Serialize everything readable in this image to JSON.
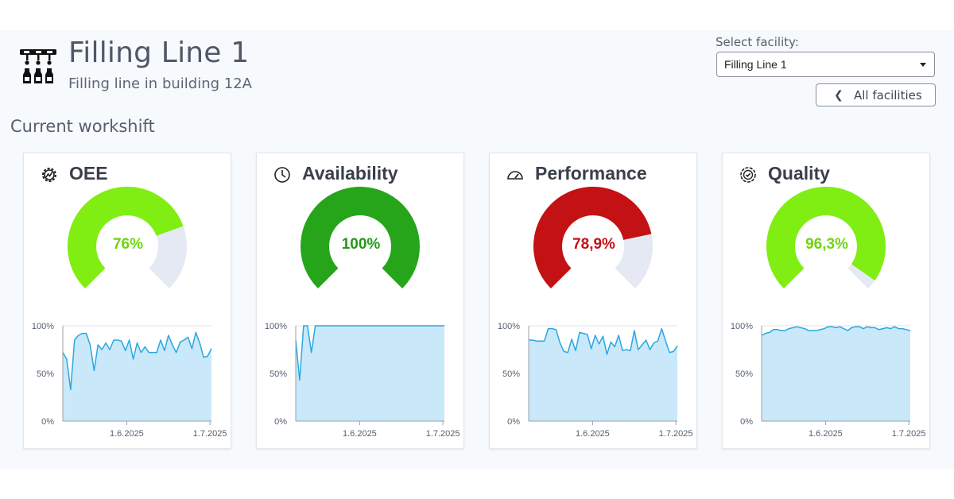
{
  "header": {
    "icon": "filling-line-icon",
    "title": "Filling Line 1",
    "subtitle": "Filling line in building 12A"
  },
  "section_title": "Current workshift",
  "facility_select": {
    "label": "Select facility:",
    "value": "Filling Line 1"
  },
  "back_button": {
    "label": "All facilities",
    "icon": "chevron-left-icon"
  },
  "colors": {
    "gauge_track": "#e5e9f4",
    "chart_fill": "#c9e8fa",
    "chart_line": "#2aa8e0",
    "light_green": "#80ee12",
    "dark_green": "#26a51b",
    "red": "#c41114"
  },
  "cards": [
    {
      "title": "OEE",
      "icon": "oee-gear-icon",
      "value_text": "76%",
      "value": 76,
      "color": "#80ee12",
      "text_color": "#6fd410"
    },
    {
      "title": "Availability",
      "icon": "clock-icon",
      "value_text": "100%",
      "value": 100,
      "color": "#26a51b",
      "text_color": "#229a18"
    },
    {
      "title": "Performance",
      "icon": "speedometer-icon",
      "value_text": "78,9%",
      "value": 78.9,
      "color": "#c41114",
      "text_color": "#c41114"
    },
    {
      "title": "Quality",
      "icon": "quality-badge-icon",
      "value_text": "96,3%",
      "value": 96.3,
      "color": "#80ee12",
      "text_color": "#6fd410"
    }
  ],
  "chart_data": [
    {
      "type": "area",
      "title": "",
      "y_ticks": [
        "100%",
        "50%",
        "0%"
      ],
      "x_ticks": [
        "1.6.2025",
        "1.7.2025"
      ],
      "ylim": [
        0,
        100
      ],
      "series": [
        {
          "values": [
            72,
            65,
            33,
            85,
            90,
            92,
            92,
            80,
            53,
            80,
            75,
            82,
            75,
            85,
            85,
            84,
            74,
            85,
            65,
            82,
            72,
            78,
            72,
            72,
            72,
            85,
            74,
            90,
            80,
            72,
            83,
            85,
            88,
            76,
            93,
            82,
            67,
            68,
            76
          ]
        }
      ]
    },
    {
      "type": "area",
      "title": "",
      "y_ticks": [
        "100%",
        "50%",
        "0%"
      ],
      "x_ticks": [
        "1.6.2025",
        "1.7.2025"
      ],
      "ylim": [
        0,
        100
      ],
      "series": [
        {
          "values": [
            85,
            43,
            100,
            100,
            72,
            100,
            100,
            100,
            100,
            100,
            100,
            100,
            100,
            100,
            100,
            100,
            100,
            100,
            100,
            100,
            100,
            100,
            100,
            100,
            100,
            100,
            100,
            100,
            100,
            100,
            100,
            100,
            100,
            100,
            100,
            100,
            100,
            100,
            100
          ]
        }
      ]
    },
    {
      "type": "area",
      "title": "",
      "y_ticks": [
        "100%",
        "50%",
        "0%"
      ],
      "x_ticks": [
        "1.6.2025",
        "1.7.2025"
      ],
      "ylim": [
        0,
        100
      ],
      "series": [
        {
          "values": [
            85,
            85,
            84,
            84,
            84,
            97,
            97,
            96,
            82,
            73,
            72,
            86,
            74,
            93,
            92,
            91,
            76,
            90,
            81,
            89,
            70,
            83,
            78,
            90,
            74,
            75,
            74,
            95,
            75,
            80,
            85,
            75,
            82,
            84,
            97,
            84,
            72,
            73,
            79
          ]
        }
      ]
    },
    {
      "type": "area",
      "title": "",
      "y_ticks": [
        "100%",
        "50%",
        "0%"
      ],
      "x_ticks": [
        "1.6.2025",
        "1.7.2025"
      ],
      "ylim": [
        0,
        100
      ],
      "series": [
        {
          "values": [
            90,
            92,
            93,
            96,
            96,
            95,
            95,
            97,
            98,
            99,
            98,
            97,
            95,
            95,
            95,
            96,
            97,
            99,
            99,
            98,
            99,
            97,
            95,
            98,
            99,
            99,
            97,
            99,
            98,
            98,
            96,
            97,
            98,
            97,
            99,
            97,
            97,
            96,
            95
          ]
        }
      ]
    }
  ]
}
